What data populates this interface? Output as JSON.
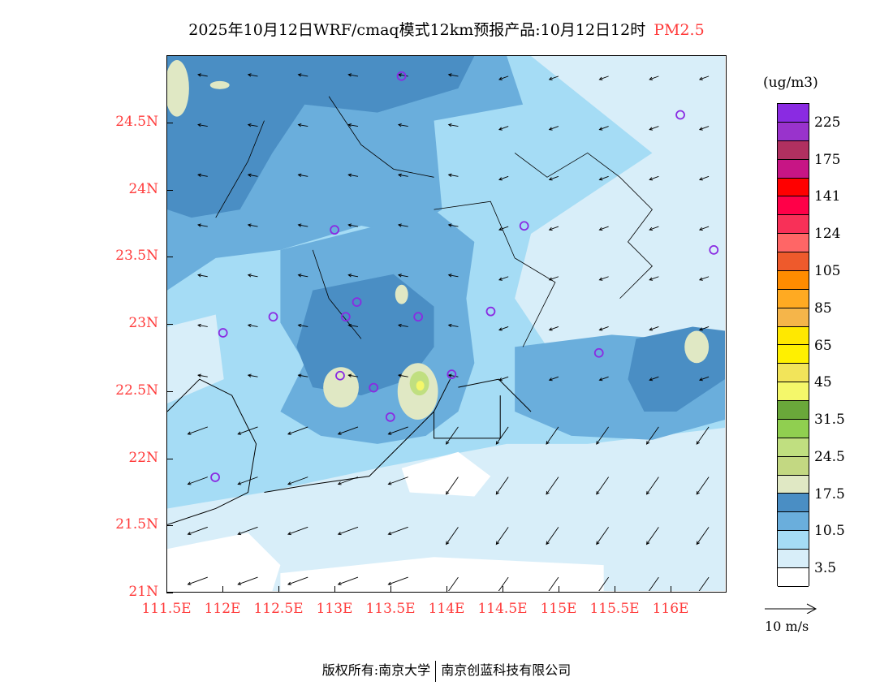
{
  "title": {
    "text": "2025年10月12日WRF/cmaq模式12km预报产品:10月12日12时",
    "pollutant": "PM2.5"
  },
  "axes": {
    "y_labels": [
      "24.5N",
      "24N",
      "23.5N",
      "23N",
      "22.5N",
      "22N",
      "21.5N",
      "21N"
    ],
    "y_values": [
      24.5,
      24,
      23.5,
      23,
      22.5,
      22,
      21.5,
      21
    ],
    "x_labels": [
      "111.5E",
      "112E",
      "112.5E",
      "113E",
      "113.5E",
      "114E",
      "114.5E",
      "115E",
      "115.5E",
      "116E"
    ],
    "x_values": [
      111.5,
      112,
      112.5,
      113,
      113.5,
      114,
      114.5,
      115,
      115.5,
      116
    ],
    "lon_range": [
      111.5,
      116.5
    ],
    "lat_range": [
      21,
      25
    ]
  },
  "colorbar": {
    "unit": "(ug/m3)",
    "colors": [
      "#8a2be2",
      "#9933cc",
      "#b03060",
      "#c71585",
      "#ff0000",
      "#ff0048",
      "#f83058",
      "#ff6666",
      "#ee5a2c",
      "#ff8c00",
      "#ffaa22",
      "#f5b54a",
      "#ffe800",
      "#fff000",
      "#f2e45a",
      "#f4f76a",
      "#6aa83a",
      "#90cf50",
      "#c0df80",
      "#c3d882",
      "#e0e8c4",
      "#4a8ec4",
      "#6aaedc",
      "#a5dcf5",
      "#d8eef9",
      "#ffffff"
    ],
    "labels": [
      "225",
      "175",
      "141",
      "124",
      "105",
      "85",
      "65",
      "45",
      "31.5",
      "24.5",
      "17.5",
      "10.5",
      "3.5"
    ]
  },
  "wind_reference": {
    "label": "10 m/s"
  },
  "stations": [
    [
      113.6,
      24.85
    ],
    [
      116.1,
      24.56
    ],
    [
      113.0,
      23.7
    ],
    [
      114.7,
      23.73
    ],
    [
      116.4,
      23.55
    ],
    [
      113.2,
      23.16
    ],
    [
      112.45,
      23.05
    ],
    [
      113.1,
      23.05
    ],
    [
      113.75,
      23.05
    ],
    [
      114.4,
      23.09
    ],
    [
      112.0,
      22.93
    ],
    [
      115.37,
      22.78
    ],
    [
      113.05,
      22.61
    ],
    [
      113.35,
      22.52
    ],
    [
      114.05,
      22.62
    ],
    [
      113.5,
      22.3
    ],
    [
      111.93,
      21.85
    ]
  ],
  "footer": {
    "left": "版权所有:南京大学",
    "right": "南京创蓝科技有限公司"
  }
}
